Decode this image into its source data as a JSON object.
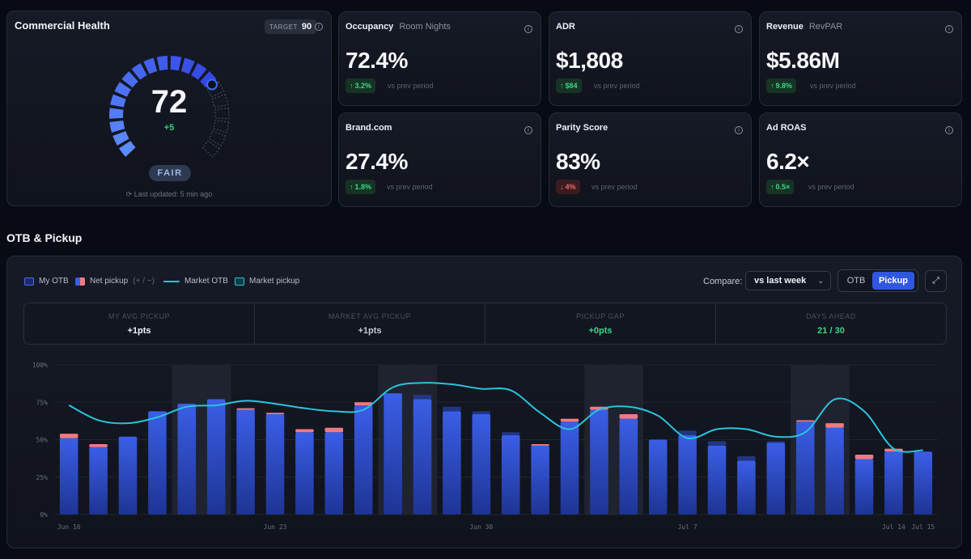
{
  "health": {
    "title": "Commercial Health",
    "target_label": "TARGET",
    "target_value": "90",
    "score": "72",
    "score_value": 72,
    "delta": "+5",
    "status": "FAIR",
    "updated": "Last updated: 5 min ago",
    "info_icon": "info-icon"
  },
  "kpis": [
    {
      "title": "Occupancy",
      "sub": "Room Nights",
      "value": "72.4%",
      "delta": "3.2%",
      "dir": "up",
      "vs": "vs prev period"
    },
    {
      "title": "ADR",
      "sub": "",
      "value": "$1,808",
      "delta": "$84",
      "dir": "up",
      "vs": "vs prev period"
    },
    {
      "title": "Revenue",
      "sub": "RevPAR",
      "value": "$5.86M",
      "delta": "9.8%",
      "dir": "up",
      "vs": "vs prev period"
    },
    {
      "title": "Brand.com",
      "sub": "",
      "value": "27.4%",
      "delta": "1.8%",
      "dir": "up",
      "vs": "vs prev period"
    },
    {
      "title": "Parity Score",
      "sub": "",
      "value": "83%",
      "delta": "4%",
      "dir": "down",
      "vs": "vs prev period"
    },
    {
      "title": "Ad ROAS",
      "sub": "",
      "value": "6.2×",
      "delta": "0.5×",
      "dir": "up",
      "vs": "vs prev period"
    }
  ],
  "otb": {
    "section_title": "OTB & Pickup",
    "legend": {
      "my_otb": "My OTB",
      "net_pickup": "Net pickup",
      "net_pickup_hint": "(+ / −)",
      "market_otb": "Market OTB",
      "market_pickup": "Market pickup"
    },
    "compare_label": "Compare:",
    "compare_value": "vs last week",
    "toggle": {
      "otb": "OTB",
      "pickup": "Pickup"
    },
    "stats": [
      {
        "label": "MY AVG PICKUP",
        "value": "+1pts",
        "color": "#f2f4fa"
      },
      {
        "label": "MARKET AVG PICKUP",
        "value": "+1pts",
        "color": "#c6cad6"
      },
      {
        "label": "PICKUP GAP",
        "value": "+0pts",
        "color": "#3ad884"
      },
      {
        "label": "DAYS AHEAD",
        "value": "21 / 30",
        "color": "#3ad884"
      }
    ]
  },
  "colors": {
    "bar": "#2d4fd0",
    "bar_top": "#3a5ee6",
    "pickup_pos": "#f07a82",
    "line": "#2bc3dc",
    "accent": "#3157e0",
    "green": "#32d17a",
    "red": "#f06a6a"
  },
  "chart_data": {
    "type": "bar",
    "categories": [
      "Jun 16",
      "Jun 17",
      "Jun 18",
      "Jun 19",
      "Jun 20",
      "Jun 21",
      "Jun 22",
      "Jun 23",
      "Jun 24",
      "Jun 25",
      "Jun 26",
      "Jun 27",
      "Jun 28",
      "Jun 29",
      "Jun 30",
      "Jul 1",
      "Jul 2",
      "Jul 3",
      "Jul 4",
      "Jul 5",
      "Jul 6",
      "Jul 7",
      "Jul 8",
      "Jul 9",
      "Jul 10",
      "Jul 11",
      "Jul 12",
      "Jul 13",
      "Jul 14",
      "Jul 15"
    ],
    "x_tick_labels": [
      "Jun 16",
      "Jun 23",
      "Jun 30",
      "Jul 7",
      "Jul 14",
      "Jul 15"
    ],
    "y_ticks": [
      "0%",
      "25%",
      "50%",
      "75%",
      "100%"
    ],
    "ylim": [
      0,
      100
    ],
    "weekend_bands": [
      [
        4,
        5
      ],
      [
        11,
        12
      ],
      [
        18,
        19
      ],
      [
        25,
        26
      ]
    ],
    "series": [
      {
        "name": "My OTB",
        "values": [
          51,
          45,
          52,
          69,
          74,
          77,
          70,
          67,
          55,
          55,
          73,
          81,
          77,
          69,
          67,
          53,
          46,
          62,
          70,
          64,
          50,
          53,
          46,
          36,
          48,
          62,
          58,
          37,
          42,
          42
        ]
      },
      {
        "name": "Net pickup",
        "values": [
          3,
          2,
          0,
          0,
          0,
          0,
          1,
          1,
          2,
          3,
          2,
          0,
          -3,
          -3,
          -2,
          -2,
          1,
          2,
          2,
          3,
          0,
          -3,
          -3,
          -3,
          -1,
          1,
          3,
          3,
          2,
          0
        ]
      },
      {
        "name": "Market OTB",
        "values": [
          73,
          63,
          61,
          65,
          72,
          73,
          76,
          74,
          71,
          69,
          70,
          85,
          88,
          87,
          84,
          83,
          68,
          57,
          70,
          72,
          66,
          51,
          57,
          57,
          52,
          55,
          77,
          69,
          44,
          43
        ]
      }
    ]
  }
}
